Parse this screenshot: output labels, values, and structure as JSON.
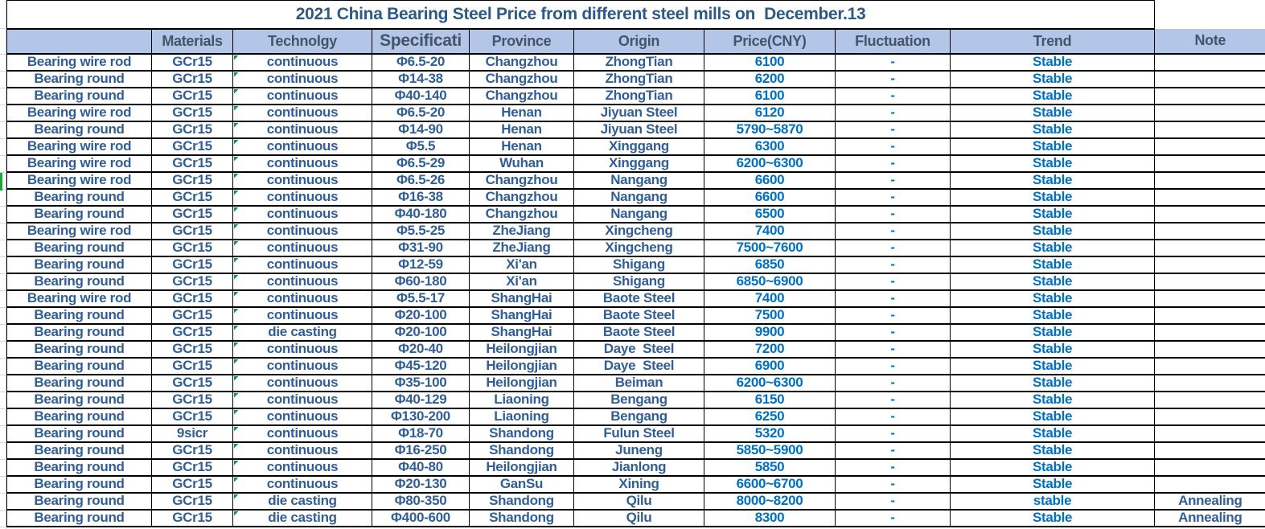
{
  "table": {
    "title": "2021 China Bearing Steel Price from different steel mills on  December.13",
    "columns": [
      {
        "name": "product",
        "label": ""
      },
      {
        "name": "materials",
        "label": "Materials"
      },
      {
        "name": "technology",
        "label": "Technolgy"
      },
      {
        "name": "specification",
        "label": "Specificati"
      },
      {
        "name": "province",
        "label": "Province"
      },
      {
        "name": "origin",
        "label": "Origin"
      },
      {
        "name": "price",
        "label": "Price(CNY)"
      },
      {
        "name": "fluctuation",
        "label": "Fluctuation"
      },
      {
        "name": "trend",
        "label": "Trend"
      },
      {
        "name": "note",
        "label": "Note"
      }
    ],
    "rows": [
      [
        "Bearing wire rod",
        "GCr15",
        "continuous",
        "Φ6.5-20",
        "Changzhou",
        "ZhongTian",
        "6100",
        "-",
        "Stable",
        ""
      ],
      [
        "Bearing round",
        "GCr15",
        "continuous",
        "Φ14-38",
        "Changzhou",
        "ZhongTian",
        "6200",
        "-",
        "Stable",
        ""
      ],
      [
        "Bearing round",
        "GCr15",
        "continuous",
        "Φ40-140",
        "Changzhou",
        "ZhongTian",
        "6100",
        "-",
        "Stable",
        ""
      ],
      [
        "Bearing wire rod",
        "GCr15",
        "continuous",
        "Φ6.5-20",
        "Henan",
        "Jiyuan Steel",
        "6120",
        "-",
        "Stable",
        ""
      ],
      [
        "Bearing round",
        "GCr15",
        "continuous",
        "Φ14-90",
        "Henan",
        "Jiyuan Steel",
        "5790~5870",
        "-",
        "Stable",
        ""
      ],
      [
        "Bearing wire rod",
        "GCr15",
        "continuous",
        "Φ5.5",
        "Henan",
        "Xinggang",
        "6300",
        "-",
        "Stable",
        ""
      ],
      [
        "Bearing wire rod",
        "GCr15",
        "continuous",
        "Φ6.5-29",
        "Wuhan",
        "Xinggang",
        "6200~6300",
        "-",
        "Stable",
        ""
      ],
      [
        "Bearing wire rod",
        "GCr15",
        "continuous",
        "Φ6.5-26",
        "Changzhou",
        "Nangang",
        "6600",
        "-",
        "Stable",
        ""
      ],
      [
        "Bearing round",
        "GCr15",
        "continuous",
        "Φ16-38",
        "Changzhou",
        "Nangang",
        "6600",
        "-",
        "Stable",
        ""
      ],
      [
        "Bearing round",
        "GCr15",
        "continuous",
        "Φ40-180",
        "Changzhou",
        "Nangang",
        "6500",
        "-",
        "Stable",
        ""
      ],
      [
        "Bearing wire rod",
        "GCr15",
        "continuous",
        "Φ5.5-25",
        "ZheJiang",
        "Xingcheng",
        "7400",
        "-",
        "Stable",
        ""
      ],
      [
        "Bearing round",
        "GCr15",
        "continuous",
        "Φ31-90",
        "ZheJiang",
        "Xingcheng",
        "7500~7600",
        "-",
        "Stable",
        ""
      ],
      [
        "Bearing round",
        "GCr15",
        "continuous",
        "Φ12-59",
        "Xi'an",
        "Shigang",
        "6850",
        "-",
        "Stable",
        ""
      ],
      [
        "Bearing round",
        "GCr15",
        "continuous",
        "Φ60-180",
        "Xi'an",
        "Shigang",
        "6850~6900",
        "-",
        "Stable",
        ""
      ],
      [
        "Bearing wire rod",
        "GCr15",
        "continuous",
        "Φ5.5-17",
        "ShangHai",
        "Baote Steel",
        "7400",
        "-",
        "Stable",
        ""
      ],
      [
        "Bearing round",
        "GCr15",
        "continuous",
        "Φ20-100",
        "ShangHai",
        "Baote Steel",
        "7500",
        "-",
        "Stable",
        ""
      ],
      [
        "Bearing round",
        "GCr15",
        "die casting",
        "Φ20-100",
        "ShangHai",
        "Baote Steel",
        "9900",
        "-",
        "Stable",
        ""
      ],
      [
        "Bearing round",
        "GCr15",
        "continuous",
        "Φ20-40",
        "Heilongjian",
        "Daye  Steel",
        "7200",
        "-",
        "Stable",
        ""
      ],
      [
        "Bearing round",
        "GCr15",
        "continuous",
        "Φ45-120",
        "Heilongjian",
        "Daye  Steel",
        "6900",
        "-",
        "Stable",
        ""
      ],
      [
        "Bearing round",
        "GCr15",
        "continuous",
        "Φ35-100",
        "Heilongjian",
        "Beiman",
        "6200~6300",
        "-",
        "Stable",
        ""
      ],
      [
        "Bearing round",
        "GCr15",
        "continuous",
        "Φ40-129",
        "Liaoning",
        "Bengang",
        "6150",
        "-",
        "Stable",
        ""
      ],
      [
        "Bearing round",
        "GCr15",
        "continuous",
        "Φ130-200",
        "Liaoning",
        "Bengang",
        "6250",
        "-",
        "Stable",
        ""
      ],
      [
        "Bearing round",
        "9sicr",
        "continuous",
        "Φ18-70",
        "Shandong",
        "Fulun Steel",
        "5320",
        "-",
        "Stable",
        ""
      ],
      [
        "Bearing round",
        "GCr15",
        "continuous",
        "Φ16-250",
        "Shandong",
        "Juneng",
        "5850~5900",
        "-",
        "Stable",
        ""
      ],
      [
        "Bearing round",
        "GCr15",
        "continuous",
        "Φ40-80",
        "Heilongjian",
        "Jianlong",
        "5850",
        "-",
        "Stable",
        ""
      ],
      [
        "Bearing round",
        "GCr15",
        "continuous",
        "Φ20-130",
        "GanSu",
        "Xining",
        "6600~6700",
        "-",
        "Stable",
        ""
      ],
      [
        "Bearing round",
        "GCr15",
        "die casting",
        "Φ80-350",
        "Shandong",
        "Qilu",
        "8000~8200",
        "-",
        "stable",
        "Annealing"
      ],
      [
        "Bearing round",
        "GCr15",
        "die casting",
        "Φ400-600",
        "Shandong",
        "Qilu",
        "8300",
        "-",
        "Stable",
        "Annealing"
      ]
    ]
  },
  "colors": {
    "header_bg": "#B4C6E7",
    "header_text": "#44546A",
    "title_text": "#2D5986",
    "body_text": "#315E94",
    "accent_blue": "#0070C0",
    "error_triangle_green": "#00A13E",
    "selection_green": "#18A937",
    "gridline": "#C9D6EA",
    "border": "#000000"
  }
}
